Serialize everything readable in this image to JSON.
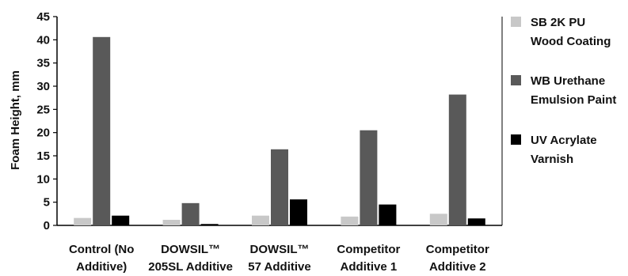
{
  "chart_data": {
    "type": "bar",
    "title": "",
    "xlabel": "",
    "ylabel": "Foam Height, mm",
    "ylim": [
      0,
      45
    ],
    "yticks": [
      0,
      5,
      10,
      15,
      20,
      25,
      30,
      35,
      40,
      45
    ],
    "grid": false,
    "legend_position": "right",
    "categories": [
      [
        "Control (No",
        "Additive)"
      ],
      [
        "DOWSIL™",
        "205SL Additive"
      ],
      [
        "DOWSIL™",
        "57 Additive"
      ],
      [
        "Competitor",
        "Additive 1"
      ],
      [
        "Competitor",
        "Additive 2"
      ]
    ],
    "series": [
      {
        "name": "SB 2K PU Wood Coating",
        "legend_lines": [
          "SB 2K PU",
          "Wood Coating"
        ],
        "color": "#c8c8c8",
        "values": [
          1.6,
          1.2,
          2.1,
          1.9,
          2.5
        ]
      },
      {
        "name": "WB Urethane Emulsion Paint",
        "legend_lines": [
          "WB Urethane",
          "Emulsion Paint"
        ],
        "color": "#595959",
        "values": [
          40.6,
          4.8,
          16.4,
          20.5,
          28.2
        ]
      },
      {
        "name": "UV Acrylate Varnish",
        "legend_lines": [
          "UV Acrylate",
          "Varnish"
        ],
        "color": "#000000",
        "values": [
          2.1,
          0.3,
          5.6,
          4.5,
          1.5
        ]
      }
    ]
  }
}
